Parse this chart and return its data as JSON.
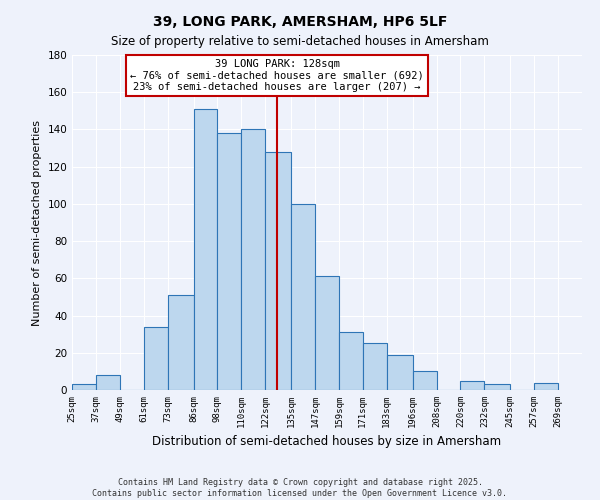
{
  "title": "39, LONG PARK, AMERSHAM, HP6 5LF",
  "subtitle": "Size of property relative to semi-detached houses in Amersham",
  "xlabel": "Distribution of semi-detached houses by size in Amersham",
  "ylabel": "Number of semi-detached properties",
  "bar_left_edges": [
    25,
    37,
    49,
    61,
    73,
    86,
    98,
    110,
    122,
    135,
    147,
    159,
    171,
    183,
    196,
    208,
    220,
    232,
    245,
    257
  ],
  "bar_heights": [
    3,
    8,
    0,
    34,
    51,
    151,
    138,
    140,
    128,
    100,
    61,
    31,
    25,
    19,
    10,
    0,
    5,
    3,
    0,
    4
  ],
  "bar_widths": [
    12,
    12,
    12,
    12,
    13,
    12,
    12,
    12,
    13,
    12,
    12,
    12,
    12,
    13,
    12,
    12,
    12,
    13,
    12,
    12
  ],
  "tick_labels": [
    "25sqm",
    "37sqm",
    "49sqm",
    "61sqm",
    "73sqm",
    "86sqm",
    "98sqm",
    "110sqm",
    "122sqm",
    "135sqm",
    "147sqm",
    "159sqm",
    "171sqm",
    "183sqm",
    "196sqm",
    "208sqm",
    "220sqm",
    "232sqm",
    "245sqm",
    "257sqm",
    "269sqm"
  ],
  "tick_positions": [
    25,
    37,
    49,
    61,
    73,
    86,
    98,
    110,
    122,
    135,
    147,
    159,
    171,
    183,
    196,
    208,
    220,
    232,
    245,
    257,
    269
  ],
  "ylim": [
    0,
    180
  ],
  "yticks": [
    0,
    20,
    40,
    60,
    80,
    100,
    120,
    140,
    160,
    180
  ],
  "bar_color": "#bdd7ee",
  "bar_edge_color": "#2e75b6",
  "vline_x": 128,
  "vline_color": "#c00000",
  "annotation_title": "39 LONG PARK: 128sqm",
  "annotation_line1": "← 76% of semi-detached houses are smaller (692)",
  "annotation_line2": "23% of semi-detached houses are larger (207) →",
  "annotation_box_color": "#c00000",
  "background_color": "#eef2fb",
  "grid_color": "#ffffff",
  "footer_line1": "Contains HM Land Registry data © Crown copyright and database right 2025.",
  "footer_line2": "Contains public sector information licensed under the Open Government Licence v3.0."
}
